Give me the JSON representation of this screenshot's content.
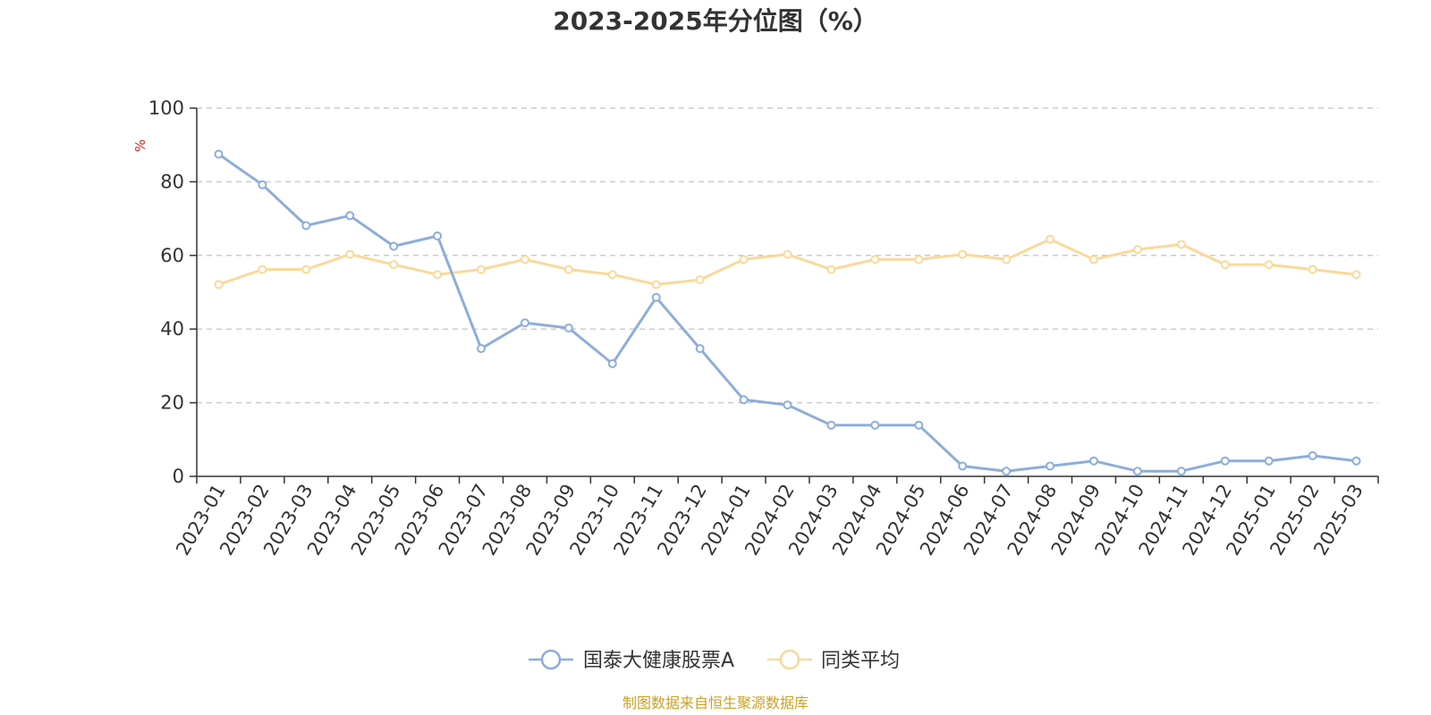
{
  "chart_data": {
    "type": "line",
    "title": "2023-2025年分位图（%）",
    "ylabel": "%",
    "ylim": [
      0,
      100
    ],
    "yticks": [
      "0",
      "20",
      "40",
      "60",
      "80",
      "100"
    ],
    "categories": [
      "2023-01",
      "2023-02",
      "2023-03",
      "2023-04",
      "2023-05",
      "2023-06",
      "2023-07",
      "2023-08",
      "2023-09",
      "2023-10",
      "2023-11",
      "2023-12",
      "2024-01",
      "2024-02",
      "2024-03",
      "2024-04",
      "2024-05",
      "2024-06",
      "2024-07",
      "2024-08",
      "2024-09",
      "2024-10",
      "2024-11",
      "2024-12",
      "2025-01",
      "2025-02",
      "2025-03"
    ],
    "grid": true,
    "legend_position": "bottom-center",
    "series": [
      {
        "name": "国泰大健康股票A",
        "color": "#8eadd9",
        "values": [
          87.5,
          79.2,
          68.1,
          70.8,
          62.5,
          65.3,
          34.7,
          41.7,
          40.3,
          30.6,
          48.6,
          34.7,
          20.8,
          19.4,
          13.9,
          13.9,
          13.9,
          2.8,
          1.4,
          2.8,
          4.2,
          1.4,
          1.4,
          4.2,
          4.2,
          5.6,
          4.2
        ]
      },
      {
        "name": "同类平均",
        "color": "#f9d99a",
        "values": [
          52.1,
          56.2,
          56.2,
          60.3,
          57.5,
          54.8,
          56.2,
          58.9,
          56.2,
          54.8,
          52.1,
          53.4,
          58.9,
          60.3,
          56.2,
          58.9,
          58.9,
          60.3,
          58.9,
          64.4,
          58.9,
          61.6,
          63.0,
          57.5,
          57.5,
          56.2,
          54.8
        ]
      }
    ]
  },
  "source_text": "制图数据来自恒生聚源数据库",
  "colors": {
    "axis": "#333333",
    "grid": "#cccccc",
    "unit": "#e02020",
    "source": "#c9a227"
  }
}
